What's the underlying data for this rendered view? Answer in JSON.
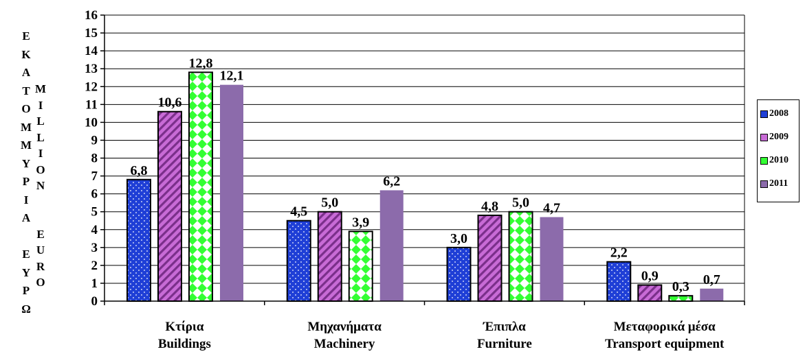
{
  "ylabel_greek": [
    "Ε",
    "Κ",
    "Α",
    "Τ",
    "Ο",
    "Μ",
    "Μ",
    "Υ",
    "Ρ",
    "Ι",
    "Α",
    "",
    "Ε",
    "Υ",
    "Ρ",
    "Ω"
  ],
  "ylabel_english": [
    "M",
    "I",
    "L",
    "L",
    "I",
    "O",
    "N",
    "",
    "",
    "E",
    "U",
    "R",
    "O"
  ],
  "colors": {
    "2008": "#1f3fd6",
    "2009": "#c86bd6",
    "2010": "#33ff33",
    "2011": "#8c6bab"
  },
  "chart_data": {
    "type": "bar",
    "categories": [
      {
        "greek": "Κτίρια",
        "english": "Buildings"
      },
      {
        "greek": "Μηχανήματα",
        "english": "Machinery"
      },
      {
        "greek": "Έπιπλα",
        "english": "Furniture"
      },
      {
        "greek": "Μεταφορικά μέσα",
        "english": "Transport equipment"
      }
    ],
    "series": [
      {
        "name": "2008",
        "values": [
          6.8,
          4.5,
          3.0,
          2.2
        ],
        "labels": [
          "6,8",
          "4,5",
          "3,0",
          "2,2"
        ]
      },
      {
        "name": "2009",
        "values": [
          10.6,
          5.0,
          4.8,
          0.9
        ],
        "labels": [
          "10,6",
          "5,0",
          "4,8",
          "0,9"
        ]
      },
      {
        "name": "2010",
        "values": [
          12.8,
          3.9,
          5.0,
          0.3
        ],
        "labels": [
          "12,8",
          "3,9",
          "5,0",
          "0,3"
        ]
      },
      {
        "name": "2011",
        "values": [
          12.1,
          6.2,
          4.7,
          0.7
        ],
        "labels": [
          "12,1",
          "6,2",
          "4,7",
          "0,7"
        ]
      }
    ],
    "ylim": [
      0,
      16
    ],
    "yticks": [
      "0",
      "1",
      "2",
      "3",
      "4",
      "5",
      "6",
      "7",
      "8",
      "9",
      "10",
      "11",
      "12",
      "13",
      "14",
      "15",
      "16"
    ],
    "grid": true,
    "legend_position": "right"
  }
}
